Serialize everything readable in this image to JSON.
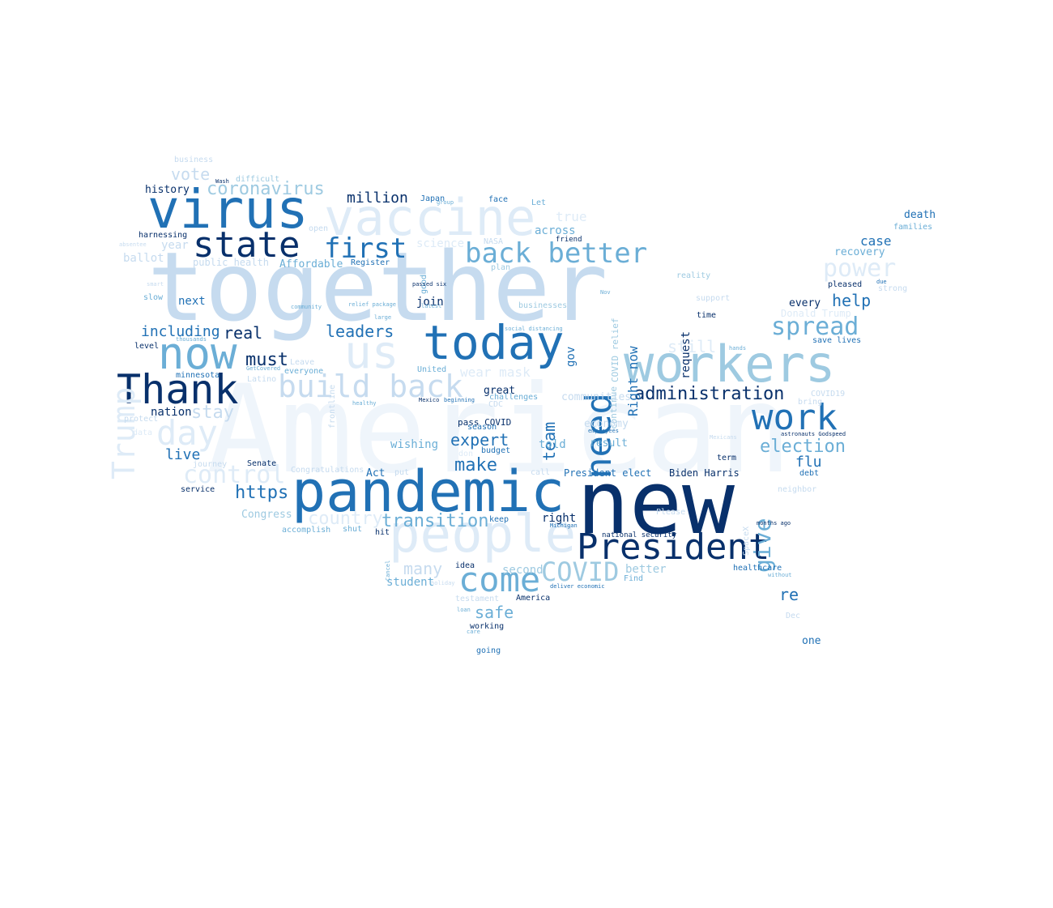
{
  "palette": {
    "d": "#08306b",
    "m": "#2171b5",
    "l": "#6baed6",
    "p": "#9ecae1",
    "q": "#c6dbef",
    "r": "#deebf7",
    "t": "#eff5fb"
  },
  "words": [
    {
      "text": "American",
      "color": "t"
    },
    {
      "text": "together",
      "color": "q"
    },
    {
      "text": "new",
      "color": "d"
    },
    {
      "text": "pandemic",
      "color": "m"
    },
    {
      "text": "people",
      "color": "r"
    },
    {
      "text": "vaccine",
      "color": "r"
    },
    {
      "text": "virus",
      "color": "m"
    },
    {
      "text": "workers",
      "color": "p"
    },
    {
      "text": "today",
      "color": "m"
    },
    {
      "text": "Thank",
      "color": "d"
    },
    {
      "text": "now",
      "color": "l"
    },
    {
      "text": "us",
      "color": "r"
    },
    {
      "text": "state",
      "color": "d"
    },
    {
      "text": "President",
      "color": "d"
    },
    {
      "text": "work",
      "color": "m"
    },
    {
      "text": "need",
      "color": "m"
    },
    {
      "text": "back better",
      "color": "l"
    },
    {
      "text": "build back",
      "color": "q"
    },
    {
      "text": "come",
      "color": "l"
    },
    {
      "text": "first",
      "color": "m"
    },
    {
      "text": "day",
      "color": "r"
    },
    {
      "text": "Trump",
      "color": "r"
    },
    {
      "text": "COVID",
      "color": "p"
    },
    {
      "text": "control",
      "color": "r"
    },
    {
      "text": "spread",
      "color": "l"
    },
    {
      "text": "power",
      "color": "r"
    },
    {
      "text": "election",
      "color": "l"
    },
    {
      "text": "give",
      "color": "l"
    },
    {
      "text": "administration",
      "color": "d"
    },
    {
      "text": "transition",
      "color": "l"
    },
    {
      "text": "https",
      "color": "m"
    },
    {
      "text": "country",
      "color": "r"
    },
    {
      "text": "coronavirus",
      "color": "p"
    },
    {
      "text": "million",
      "color": "d"
    },
    {
      "text": "leaders",
      "color": "m"
    },
    {
      "text": "including",
      "color": "m"
    },
    {
      "text": "real",
      "color": "d"
    },
    {
      "text": "must",
      "color": "d"
    },
    {
      "text": "stay",
      "color": "q"
    },
    {
      "text": "live",
      "color": "m"
    },
    {
      "text": "help",
      "color": "m"
    },
    {
      "text": "still",
      "color": "r"
    },
    {
      "text": "flu",
      "color": "m"
    },
    {
      "text": "expert",
      "color": "m"
    },
    {
      "text": "make",
      "color": "m"
    },
    {
      "text": "safe",
      "color": "l"
    },
    {
      "text": "many",
      "color": "q"
    },
    {
      "text": "team",
      "color": "m"
    },
    {
      "text": "re",
      "color": "m"
    },
    {
      "text": "case",
      "color": "m"
    },
    {
      "text": "vote",
      "color": "q"
    },
    {
      "text": "true",
      "color": "r"
    },
    {
      "text": "Right now",
      "color": "m"
    },
    {
      "text": "request",
      "color": "d"
    },
    {
      "text": "wear mask",
      "color": "r"
    },
    {
      "text": "history",
      "color": "d"
    },
    {
      "text": "death",
      "color": "m"
    },
    {
      "text": "families",
      "color": "l"
    },
    {
      "text": "recovery",
      "color": "l"
    },
    {
      "text": "business",
      "color": "q"
    },
    {
      "text": "difficult",
      "color": "p"
    },
    {
      "text": "Wash",
      "color": "d"
    },
    {
      "text": "harnessing",
      "color": "d"
    },
    {
      "text": "absentee",
      "color": "q"
    },
    {
      "text": "year",
      "color": "q"
    },
    {
      "text": "ballot",
      "color": "q"
    },
    {
      "text": "public health",
      "color": "q"
    },
    {
      "text": "Affordable",
      "color": "l"
    },
    {
      "text": "Register",
      "color": "m"
    },
    {
      "text": "Japan",
      "color": "m"
    },
    {
      "text": "group",
      "color": "l"
    },
    {
      "text": "face",
      "color": "m"
    },
    {
      "text": "Let",
      "color": "l"
    },
    {
      "text": "across",
      "color": "l"
    },
    {
      "text": "friend",
      "color": "d"
    },
    {
      "text": "science",
      "color": "r"
    },
    {
      "text": "NASA",
      "color": "q"
    },
    {
      "text": "plan",
      "color": "p"
    },
    {
      "text": "good",
      "color": "l"
    },
    {
      "text": "smart",
      "color": "q"
    },
    {
      "text": "slow",
      "color": "l"
    },
    {
      "text": "next",
      "color": "m"
    },
    {
      "text": "open",
      "color": "q"
    },
    {
      "text": "community",
      "color": "l"
    },
    {
      "text": "relief package",
      "color": "l"
    },
    {
      "text": "join",
      "color": "d"
    },
    {
      "text": "latest",
      "color": "l"
    },
    {
      "text": "passed six",
      "color": "d"
    },
    {
      "text": "large",
      "color": "l"
    },
    {
      "text": "businesses",
      "color": "p"
    },
    {
      "text": "social distancing",
      "color": "l"
    },
    {
      "text": "gov",
      "color": "m"
    },
    {
      "text": "continue",
      "color": "p"
    },
    {
      "text": "COVID relief",
      "color": "p"
    },
    {
      "text": "Nov",
      "color": "l"
    },
    {
      "text": "reality",
      "color": "p"
    },
    {
      "text": "support",
      "color": "q"
    },
    {
      "text": "time",
      "color": "d"
    },
    {
      "text": "every",
      "color": "d"
    },
    {
      "text": "Donald Trump",
      "color": "r"
    },
    {
      "text": "pleased",
      "color": "d"
    },
    {
      "text": "strong",
      "color": "q"
    },
    {
      "text": "due",
      "color": "m"
    },
    {
      "text": "save lives",
      "color": "m"
    },
    {
      "text": "hands",
      "color": "l"
    },
    {
      "text": "thousands",
      "color": "l"
    },
    {
      "text": "level",
      "color": "d"
    },
    {
      "text": "Leave",
      "color": "q"
    },
    {
      "text": "everyone",
      "color": "l"
    },
    {
      "text": "minnesota",
      "color": "m"
    },
    {
      "text": "GetCovered",
      "color": "l"
    },
    {
      "text": "Latino",
      "color": "q"
    },
    {
      "text": "frontline",
      "color": "q"
    },
    {
      "text": "United",
      "color": "l"
    },
    {
      "text": "don",
      "color": "r"
    },
    {
      "text": "great",
      "color": "d"
    },
    {
      "text": "challenges",
      "color": "l"
    },
    {
      "text": "CDC",
      "color": "q"
    },
    {
      "text": "communities",
      "color": "q"
    },
    {
      "text": "healthy",
      "color": "l"
    },
    {
      "text": "Mexico",
      "color": "d"
    },
    {
      "text": "beginning",
      "color": "m"
    },
    {
      "text": "nation",
      "color": "d"
    },
    {
      "text": "protect",
      "color": "q"
    },
    {
      "text": "data",
      "color": "r"
    },
    {
      "text": "pass COVID",
      "color": "d"
    },
    {
      "text": "season",
      "color": "m"
    },
    {
      "text": "economy",
      "color": "q"
    },
    {
      "text": "employees",
      "color": "m"
    },
    {
      "text": "result",
      "color": "l"
    },
    {
      "text": "wishing",
      "color": "l"
    },
    {
      "text": "budget",
      "color": "m"
    },
    {
      "text": "told",
      "color": "l"
    },
    {
      "text": "journey",
      "color": "q"
    },
    {
      "text": "Senate",
      "color": "d"
    },
    {
      "text": "Congratulations",
      "color": "q"
    },
    {
      "text": "Act",
      "color": "m"
    },
    {
      "text": "put",
      "color": "q"
    },
    {
      "text": "call",
      "color": "q"
    },
    {
      "text": "President elect",
      "color": "m"
    },
    {
      "text": "Biden Harris",
      "color": "d"
    },
    {
      "text": "Mexicans",
      "color": "q"
    },
    {
      "text": "term",
      "color": "d"
    },
    {
      "text": "astronauts Godspeed",
      "color": "d"
    },
    {
      "text": "COVID19",
      "color": "q"
    },
    {
      "text": "bring",
      "color": "q"
    },
    {
      "text": "debt",
      "color": "m"
    },
    {
      "text": "neighbor",
      "color": "q"
    },
    {
      "text": "service",
      "color": "d"
    },
    {
      "text": "Congress",
      "color": "p"
    },
    {
      "text": "accomplish",
      "color": "l"
    },
    {
      "text": "shut",
      "color": "l"
    },
    {
      "text": "hit",
      "color": "d"
    },
    {
      "text": "keep",
      "color": "m"
    },
    {
      "text": "right",
      "color": "d"
    },
    {
      "text": "Michigan",
      "color": "m"
    },
    {
      "text": "Please",
      "color": "q"
    },
    {
      "text": "SpaceX",
      "color": "q"
    },
    {
      "text": "months ago",
      "color": "d"
    },
    {
      "text": "national security",
      "color": "d"
    },
    {
      "text": "Cancel",
      "color": "l"
    },
    {
      "text": "idea",
      "color": "d"
    },
    {
      "text": "second",
      "color": "p"
    },
    {
      "text": "better",
      "color": "p"
    },
    {
      "text": "healthcare",
      "color": "m"
    },
    {
      "text": "without",
      "color": "l"
    },
    {
      "text": "student",
      "color": "l"
    },
    {
      "text": "holiday",
      "color": "q"
    },
    {
      "text": "deliver economic",
      "color": "m"
    },
    {
      "text": "Find",
      "color": "l"
    },
    {
      "text": "testament",
      "color": "q"
    },
    {
      "text": "America",
      "color": "d"
    },
    {
      "text": "loan",
      "color": "l"
    },
    {
      "text": "working",
      "color": "d"
    },
    {
      "text": "care",
      "color": "l"
    },
    {
      "text": "going",
      "color": "m"
    },
    {
      "text": "Dec",
      "color": "q"
    },
    {
      "text": "one",
      "color": "m"
    }
  ]
}
